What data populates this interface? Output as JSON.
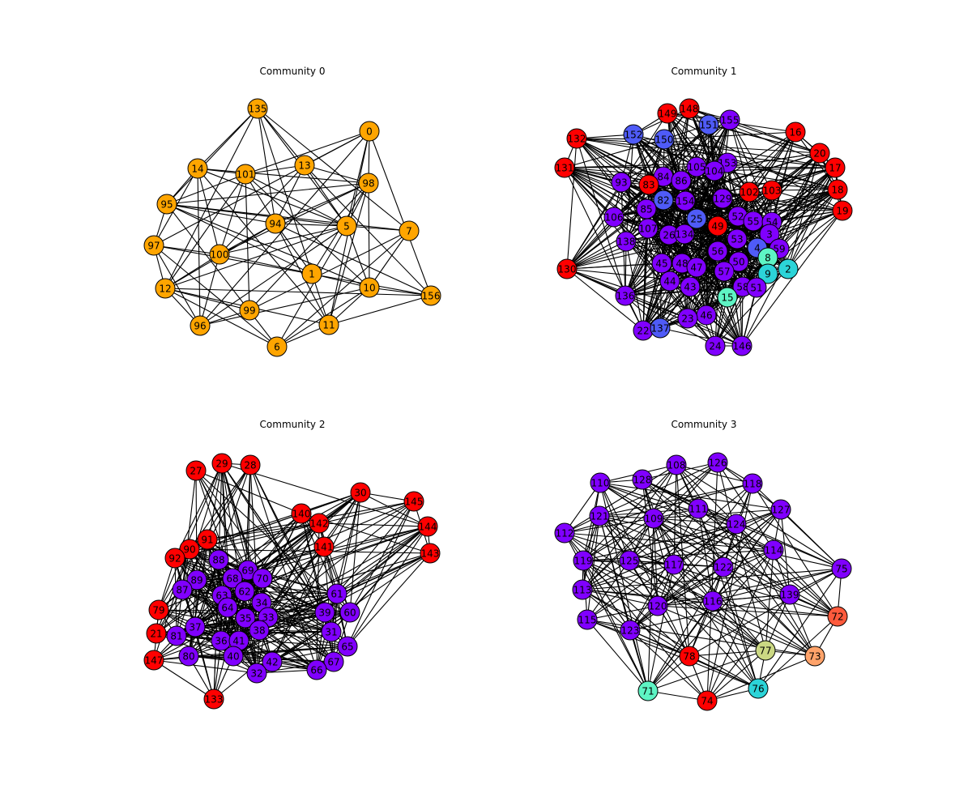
{
  "colors": {
    "orange": "#ffa500",
    "purple": "#8000ff",
    "red": "#ff0000",
    "blue": "#4f5bf7",
    "cyan": "#2cd4d8",
    "aqua": "#5ef4c4",
    "olive": "#cbd883",
    "coral": "#ff5a3c",
    "salmon": "#ffa36a"
  },
  "panels": [
    {
      "title": "Community 0",
      "nodes": [
        {
          "id": "135",
          "color": "orange"
        },
        {
          "id": "0",
          "color": "orange"
        },
        {
          "id": "14",
          "color": "orange"
        },
        {
          "id": "101",
          "color": "orange"
        },
        {
          "id": "13",
          "color": "orange"
        },
        {
          "id": "98",
          "color": "orange"
        },
        {
          "id": "95",
          "color": "orange"
        },
        {
          "id": "94",
          "color": "orange"
        },
        {
          "id": "5",
          "color": "orange"
        },
        {
          "id": "7",
          "color": "orange"
        },
        {
          "id": "97",
          "color": "orange"
        },
        {
          "id": "100",
          "color": "orange"
        },
        {
          "id": "1",
          "color": "orange"
        },
        {
          "id": "12",
          "color": "orange"
        },
        {
          "id": "10",
          "color": "orange"
        },
        {
          "id": "156",
          "color": "orange"
        },
        {
          "id": "99",
          "color": "orange"
        },
        {
          "id": "96",
          "color": "orange"
        },
        {
          "id": "11",
          "color": "orange"
        },
        {
          "id": "6",
          "color": "orange"
        }
      ]
    },
    {
      "title": "Community 1",
      "nodes": [
        {
          "id": "149",
          "color": "red"
        },
        {
          "id": "148",
          "color": "red"
        },
        {
          "id": "155",
          "color": "purple"
        },
        {
          "id": "152",
          "color": "blue"
        },
        {
          "id": "151",
          "color": "blue"
        },
        {
          "id": "132",
          "color": "red"
        },
        {
          "id": "150",
          "color": "blue"
        },
        {
          "id": "16",
          "color": "red"
        },
        {
          "id": "20",
          "color": "red"
        },
        {
          "id": "131",
          "color": "red"
        },
        {
          "id": "153",
          "color": "purple"
        },
        {
          "id": "105",
          "color": "purple"
        },
        {
          "id": "104",
          "color": "purple"
        },
        {
          "id": "17",
          "color": "red"
        },
        {
          "id": "84",
          "color": "purple"
        },
        {
          "id": "93",
          "color": "purple"
        },
        {
          "id": "83",
          "color": "red"
        },
        {
          "id": "86",
          "color": "purple"
        },
        {
          "id": "18",
          "color": "red"
        },
        {
          "id": "102",
          "color": "red"
        },
        {
          "id": "103",
          "color": "red"
        },
        {
          "id": "82",
          "color": "blue"
        },
        {
          "id": "154",
          "color": "purple"
        },
        {
          "id": "129",
          "color": "purple"
        },
        {
          "id": "85",
          "color": "purple"
        },
        {
          "id": "19",
          "color": "red"
        },
        {
          "id": "106",
          "color": "purple"
        },
        {
          "id": "25",
          "color": "blue"
        },
        {
          "id": "52",
          "color": "purple"
        },
        {
          "id": "55",
          "color": "purple"
        },
        {
          "id": "54",
          "color": "purple"
        },
        {
          "id": "49",
          "color": "red"
        },
        {
          "id": "107",
          "color": "purple"
        },
        {
          "id": "26",
          "color": "purple"
        },
        {
          "id": "134",
          "color": "purple"
        },
        {
          "id": "3",
          "color": "purple"
        },
        {
          "id": "138",
          "color": "purple"
        },
        {
          "id": "53",
          "color": "purple"
        },
        {
          "id": "4",
          "color": "blue"
        },
        {
          "id": "59",
          "color": "purple"
        },
        {
          "id": "56",
          "color": "purple"
        },
        {
          "id": "8",
          "color": "aqua"
        },
        {
          "id": "130",
          "color": "red"
        },
        {
          "id": "45",
          "color": "purple"
        },
        {
          "id": "48",
          "color": "purple"
        },
        {
          "id": "47",
          "color": "purple"
        },
        {
          "id": "50",
          "color": "purple"
        },
        {
          "id": "2",
          "color": "cyan"
        },
        {
          "id": "9",
          "color": "cyan"
        },
        {
          "id": "57",
          "color": "purple"
        },
        {
          "id": "44",
          "color": "purple"
        },
        {
          "id": "43",
          "color": "purple"
        },
        {
          "id": "58",
          "color": "purple"
        },
        {
          "id": "51",
          "color": "purple"
        },
        {
          "id": "136",
          "color": "purple"
        },
        {
          "id": "15",
          "color": "aqua"
        },
        {
          "id": "46",
          "color": "purple"
        },
        {
          "id": "23",
          "color": "purple"
        },
        {
          "id": "22",
          "color": "purple"
        },
        {
          "id": "137",
          "color": "blue"
        },
        {
          "id": "24",
          "color": "purple"
        },
        {
          "id": "146",
          "color": "purple"
        }
      ]
    },
    {
      "title": "Community 2",
      "nodes": [
        {
          "id": "27",
          "color": "red"
        },
        {
          "id": "29",
          "color": "red"
        },
        {
          "id": "28",
          "color": "red"
        },
        {
          "id": "30",
          "color": "red"
        },
        {
          "id": "145",
          "color": "red"
        },
        {
          "id": "140",
          "color": "red"
        },
        {
          "id": "142",
          "color": "red"
        },
        {
          "id": "144",
          "color": "red"
        },
        {
          "id": "91",
          "color": "red"
        },
        {
          "id": "141",
          "color": "red"
        },
        {
          "id": "90",
          "color": "red"
        },
        {
          "id": "143",
          "color": "red"
        },
        {
          "id": "92",
          "color": "red"
        },
        {
          "id": "88",
          "color": "purple"
        },
        {
          "id": "69",
          "color": "purple"
        },
        {
          "id": "89",
          "color": "purple"
        },
        {
          "id": "68",
          "color": "purple"
        },
        {
          "id": "70",
          "color": "purple"
        },
        {
          "id": "87",
          "color": "purple"
        },
        {
          "id": "62",
          "color": "purple"
        },
        {
          "id": "63",
          "color": "purple"
        },
        {
          "id": "61",
          "color": "purple"
        },
        {
          "id": "34",
          "color": "purple"
        },
        {
          "id": "64",
          "color": "purple"
        },
        {
          "id": "79",
          "color": "red"
        },
        {
          "id": "39",
          "color": "purple"
        },
        {
          "id": "60",
          "color": "purple"
        },
        {
          "id": "35",
          "color": "purple"
        },
        {
          "id": "33",
          "color": "purple"
        },
        {
          "id": "37",
          "color": "purple"
        },
        {
          "id": "38",
          "color": "purple"
        },
        {
          "id": "21",
          "color": "red"
        },
        {
          "id": "31",
          "color": "purple"
        },
        {
          "id": "81",
          "color": "purple"
        },
        {
          "id": "36",
          "color": "purple"
        },
        {
          "id": "41",
          "color": "purple"
        },
        {
          "id": "65",
          "color": "purple"
        },
        {
          "id": "40",
          "color": "purple"
        },
        {
          "id": "80",
          "color": "purple"
        },
        {
          "id": "147",
          "color": "red"
        },
        {
          "id": "42",
          "color": "purple"
        },
        {
          "id": "67",
          "color": "purple"
        },
        {
          "id": "66",
          "color": "purple"
        },
        {
          "id": "32",
          "color": "purple"
        },
        {
          "id": "133",
          "color": "red"
        }
      ]
    },
    {
      "title": "Community 3",
      "nodes": [
        {
          "id": "108",
          "color": "purple"
        },
        {
          "id": "126",
          "color": "purple"
        },
        {
          "id": "110",
          "color": "purple"
        },
        {
          "id": "128",
          "color": "purple"
        },
        {
          "id": "118",
          "color": "purple"
        },
        {
          "id": "127",
          "color": "purple"
        },
        {
          "id": "121",
          "color": "purple"
        },
        {
          "id": "111",
          "color": "purple"
        },
        {
          "id": "109",
          "color": "purple"
        },
        {
          "id": "124",
          "color": "purple"
        },
        {
          "id": "112",
          "color": "purple"
        },
        {
          "id": "114",
          "color": "purple"
        },
        {
          "id": "119",
          "color": "purple"
        },
        {
          "id": "125",
          "color": "purple"
        },
        {
          "id": "117",
          "color": "purple"
        },
        {
          "id": "122",
          "color": "purple"
        },
        {
          "id": "75",
          "color": "purple"
        },
        {
          "id": "113",
          "color": "purple"
        },
        {
          "id": "139",
          "color": "purple"
        },
        {
          "id": "120",
          "color": "purple"
        },
        {
          "id": "116",
          "color": "purple"
        },
        {
          "id": "72",
          "color": "coral"
        },
        {
          "id": "115",
          "color": "purple"
        },
        {
          "id": "123",
          "color": "purple"
        },
        {
          "id": "77",
          "color": "olive"
        },
        {
          "id": "73",
          "color": "salmon"
        },
        {
          "id": "78",
          "color": "red"
        },
        {
          "id": "76",
          "color": "cyan"
        },
        {
          "id": "71",
          "color": "aqua"
        },
        {
          "id": "74",
          "color": "red"
        }
      ]
    }
  ]
}
